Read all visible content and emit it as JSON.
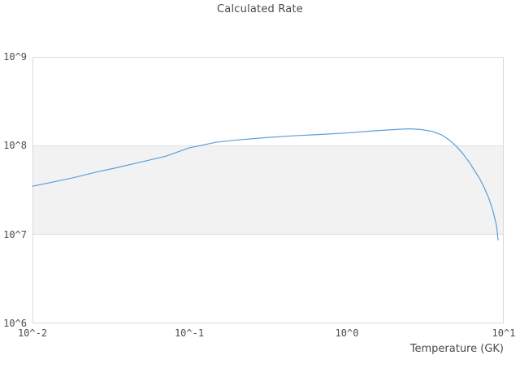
{
  "chart_data": {
    "type": "line",
    "title": "Calculated Rate",
    "xlabel": "Temperature (GK)",
    "ylabel": "",
    "x_scale": "log",
    "y_scale": "log",
    "xlim": [
      0.01,
      10
    ],
    "ylim": [
      1000000,
      1000000000
    ],
    "grid": "horizontal-only",
    "legend": "none",
    "x_ticks": [
      {
        "value": 0.01,
        "label": "10^-2"
      },
      {
        "value": 0.1,
        "label": "10^-1"
      },
      {
        "value": 1,
        "label": "10^0"
      },
      {
        "value": 10,
        "label": "10^1"
      }
    ],
    "y_ticks": [
      {
        "value": 1000000,
        "label": "10^6"
      },
      {
        "value": 10000000,
        "label": "10^7"
      },
      {
        "value": 100000000,
        "label": "10^8"
      },
      {
        "value": 1000000000,
        "label": "10^9"
      }
    ],
    "shaded_band": {
      "from": 10000000,
      "to": 100000000,
      "color": "#f2f2f2"
    },
    "style": {
      "line_color": "#5b9fd8",
      "grid_color": "#e1e1e1",
      "border_color": "#d9d9d9",
      "background": "#ffffff",
      "text_color": "#4a4a4a"
    },
    "series": [
      {
        "name": "calculated-rate",
        "color": "#5b9fd8",
        "x": [
          0.01,
          0.013,
          0.018,
          0.025,
          0.035,
          0.05,
          0.07,
          0.1,
          0.15,
          0.2,
          0.3,
          0.45,
          0.7,
          1.0,
          1.5,
          2.0,
          2.5,
          3.0,
          3.5,
          4.0,
          4.5,
          5.0,
          5.5,
          6.0,
          6.5,
          7.0,
          7.5,
          8.0,
          8.5,
          9.0,
          9.2
        ],
        "y": [
          35000000.0,
          38500000.0,
          43500000.0,
          50000000.0,
          57000000.0,
          66000000.0,
          76000000.0,
          95000000.0,
          110000000.0,
          116000000.0,
          123000000.0,
          129000000.0,
          134000000.0,
          139000000.0,
          147000000.0,
          152000000.0,
          155000000.0,
          152000000.0,
          145000000.0,
          133000000.0,
          116000000.0,
          98000000.0,
          81000000.0,
          66000000.0,
          53000000.0,
          43000000.0,
          34000000.0,
          26000000.0,
          19000000.0,
          12500000.0,
          8700000.0
        ]
      }
    ]
  }
}
